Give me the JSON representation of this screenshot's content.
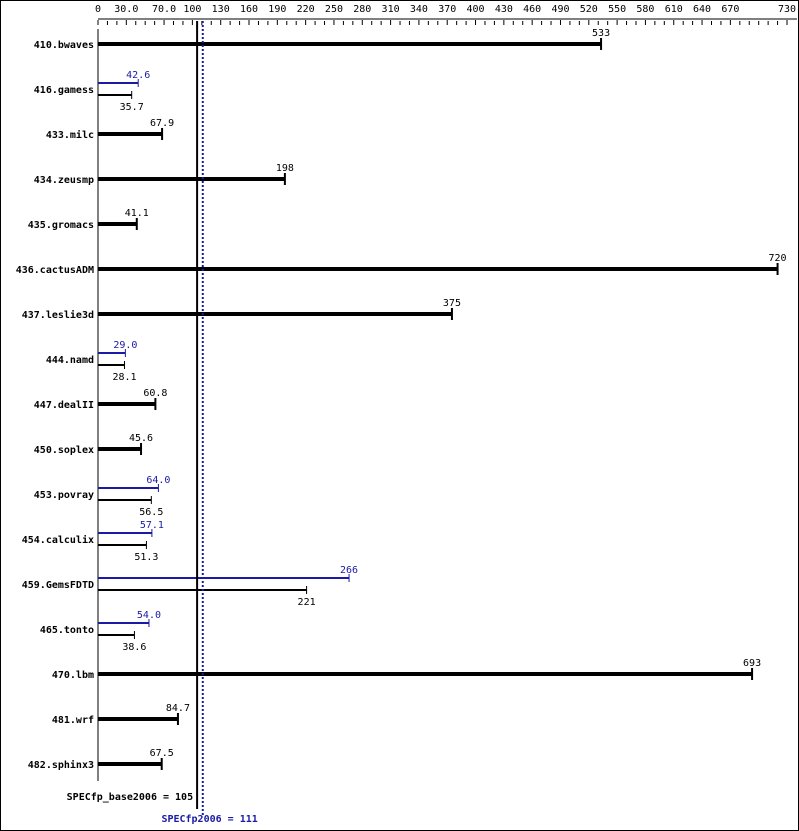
{
  "chart_data": {
    "type": "bar",
    "orientation": "horizontal",
    "xlim": [
      0,
      730
    ],
    "tick_labels": [
      "0",
      "30.0",
      "70.0",
      "100",
      "130",
      "160",
      "190",
      "220",
      "250",
      "280",
      "310",
      "340",
      "370",
      "400",
      "430",
      "460",
      "490",
      "520",
      "550",
      "580",
      "610",
      "640",
      "670",
      "730"
    ],
    "tick_values": [
      0,
      30,
      70,
      100,
      130,
      160,
      190,
      220,
      250,
      280,
      310,
      340,
      370,
      400,
      430,
      460,
      490,
      520,
      550,
      580,
      610,
      640,
      670,
      730
    ],
    "categories": [
      "410.bwaves",
      "416.gamess",
      "433.milc",
      "434.zeusmp",
      "435.gromacs",
      "436.cactusADM",
      "437.leslie3d",
      "444.namd",
      "447.dealII",
      "450.soplex",
      "453.povray",
      "454.calculix",
      "459.GemsFDTD",
      "465.tonto",
      "470.lbm",
      "481.wrf",
      "482.sphinx3"
    ],
    "series": [
      {
        "name": "SPECfp_base2006",
        "values": [
          533,
          35.7,
          67.9,
          198,
          41.1,
          720,
          375,
          28.1,
          60.8,
          45.6,
          56.5,
          51.3,
          221,
          38.6,
          693,
          84.7,
          67.5
        ]
      },
      {
        "name": "SPECfp2006",
        "values": [
          533,
          42.6,
          67.9,
          198,
          41.1,
          720,
          375,
          29.0,
          60.8,
          45.6,
          64.0,
          57.1,
          266,
          54.0,
          693,
          84.7,
          67.5
        ]
      }
    ],
    "value_labels_base": [
      "533",
      "35.7",
      "67.9",
      "198",
      "41.1",
      "720",
      "375",
      "28.1",
      "60.8",
      "45.6",
      "56.5",
      "51.3",
      "221",
      "38.6",
      "693",
      "84.7",
      "67.5"
    ],
    "value_labels_peak": [
      "533",
      "42.6",
      "67.9",
      "198",
      "41.1",
      "720",
      "375",
      "29.0",
      "60.8",
      "45.6",
      "64.0",
      "57.1",
      "266",
      "54.0",
      "693",
      "84.7",
      "67.5"
    ],
    "reference_lines": [
      {
        "label": "SPECfp_base2006 = 105",
        "value": 105,
        "color": "#000000",
        "style": "solid"
      },
      {
        "label": "SPECfp2006 = 111",
        "value": 111,
        "color": "#1a1aa6",
        "style": "dotted"
      }
    ],
    "colors": {
      "base": "#000000",
      "peak": "#1a1aa6"
    }
  }
}
